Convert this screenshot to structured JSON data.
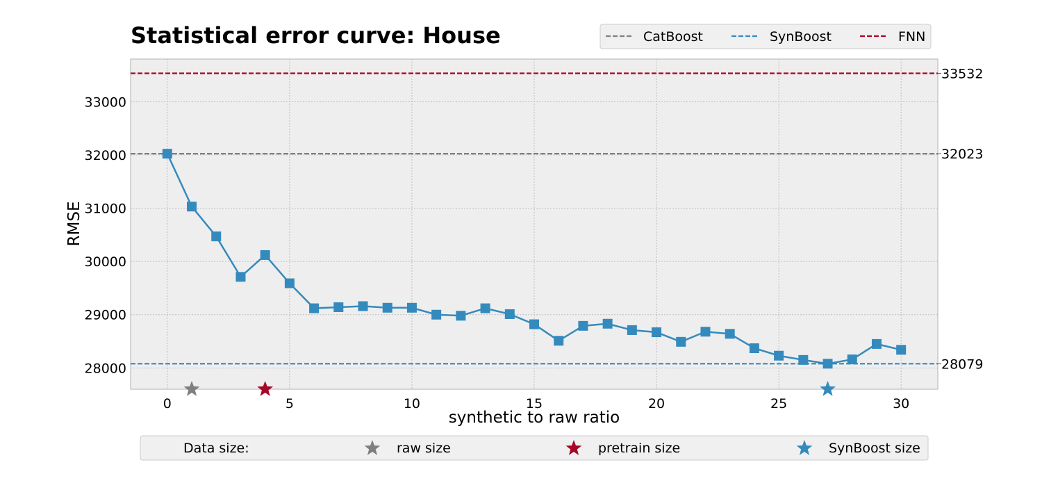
{
  "chart_data": {
    "type": "line",
    "title": "Statistical error curve: House",
    "xlabel": "synthetic to raw ratio",
    "ylabel": "RMSE",
    "xlim": [
      -1.5,
      31.5
    ],
    "ylim": [
      27600,
      33800
    ],
    "xticks": [
      0,
      5,
      10,
      15,
      20,
      25,
      30
    ],
    "yticks": [
      28000,
      29000,
      30000,
      31000,
      32000,
      33000
    ],
    "grid": true,
    "series": [
      {
        "color": "#348abd",
        "marker": "square",
        "x": [
          0,
          1,
          2,
          3,
          4,
          5,
          6,
          7,
          8,
          9,
          10,
          11,
          12,
          13,
          14,
          15,
          16,
          17,
          18,
          19,
          20,
          21,
          22,
          23,
          24,
          25,
          26,
          27,
          28,
          29,
          30
        ],
        "y": [
          32023,
          31030,
          30470,
          29710,
          30120,
          29590,
          29120,
          29140,
          29160,
          29130,
          29130,
          29000,
          28980,
          29120,
          29010,
          28820,
          28510,
          28790,
          28830,
          28710,
          28670,
          28490,
          28680,
          28640,
          28370,
          28230,
          28150,
          28079,
          28160,
          28450,
          28340
        ]
      }
    ],
    "reference_lines": [
      {
        "name": "CatBoost",
        "value": 32023,
        "label": "32023",
        "color": "#7f7f7f"
      },
      {
        "name": "SynBoost",
        "value": 28079,
        "label": "28079",
        "color": "#348abd"
      },
      {
        "name": "FNN",
        "value": 33532,
        "label": "33532",
        "color": "#a60628"
      }
    ],
    "size_markers": [
      {
        "name": "raw size",
        "x": 1,
        "color": "#7f7f7f"
      },
      {
        "name": "pretrain size",
        "x": 4,
        "color": "#a60628"
      },
      {
        "name": "SynBoost size",
        "x": 27,
        "color": "#348abd"
      }
    ],
    "legend_top": {
      "placement": "top-right"
    },
    "legend_bottom": {
      "title": "Data size:",
      "placement": "bottom"
    }
  }
}
